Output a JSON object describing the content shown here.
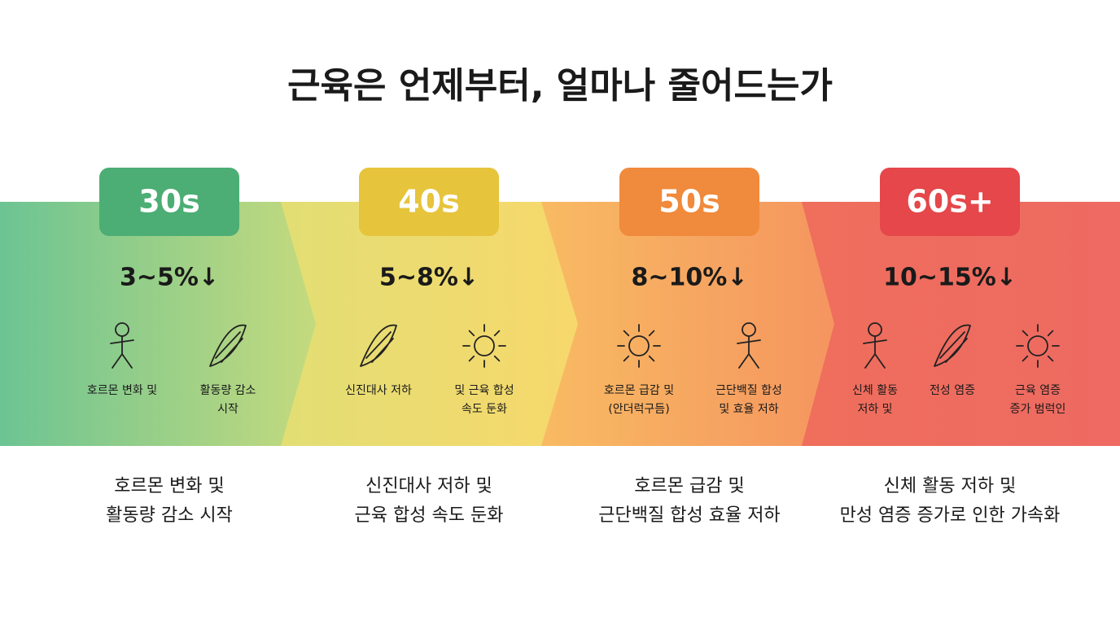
{
  "title": "근육은 언제부터, 얼마나 줄어드는가",
  "stages": [
    {
      "badge": "30s",
      "rate": "3~5%↓",
      "icons": [
        [
          "호르몬 변화 및"
        ],
        [
          "활동량 감소",
          "시작"
        ]
      ],
      "description": [
        "호르몬 변화 및",
        "활동량 감소 시작"
      ]
    },
    {
      "badge": "40s",
      "rate": "5~8%↓",
      "icons": [
        [
          "신진대사 저하"
        ],
        [
          "및 근육 합성",
          "속도 둔화"
        ]
      ],
      "description": [
        "신진대사 저하 및",
        "근육 합성 속도 둔화"
      ]
    },
    {
      "badge": "50s",
      "rate": "8~10%↓",
      "icons": [
        [
          "호르몬 급감 및",
          "(안더럭구듬)"
        ],
        [
          "근단백질 합성",
          "및 효율 저하"
        ]
      ],
      "description": [
        "호르몬 급감 및",
        "근단백질 합성 효율 저하"
      ]
    },
    {
      "badge": "60s+",
      "rate": "10~15%↓",
      "icons": [
        [
          "신체 활동",
          "저하 및"
        ],
        [
          "전성 염증"
        ],
        [
          "근육 염증",
          "증가 범럭인"
        ]
      ],
      "description": [
        "신체 활동 저하 및",
        "만성 염증 증가로 인한 가속화"
      ]
    }
  ]
}
